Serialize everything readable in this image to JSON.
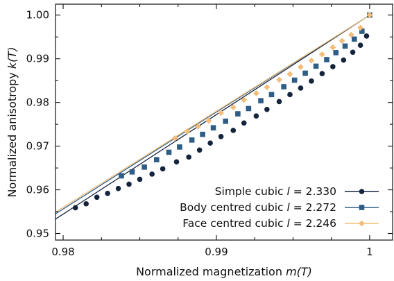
{
  "chart_data": {
    "type": "line",
    "xlabel": "Normalized magnetization ",
    "xlabel_italic": "m(T)",
    "ylabel": "Normalized anisotropy ",
    "ylabel_italic": "k(T)",
    "xlim": [
      0.9795,
      1.0015
    ],
    "ylim": [
      0.9485,
      1.0025
    ],
    "x_ticks": [
      0.98,
      0.99,
      1.0
    ],
    "x_tick_labels": [
      "0.98",
      "0.99",
      "1"
    ],
    "x_minor_ticks": [
      0.9825,
      0.985,
      0.9875,
      0.9925,
      0.995,
      0.9975
    ],
    "y_ticks": [
      0.95,
      0.96,
      0.97,
      0.98,
      0.99,
      1.0
    ],
    "y_tick_labels": [
      "0.95",
      "0.96",
      "0.97",
      "0.98",
      "0.99",
      "1.00"
    ],
    "y_minor_ticks": [
      0.955,
      0.965,
      0.975,
      0.985,
      0.995
    ],
    "grid": false,
    "legend_position": "bottom-right",
    "series": [
      {
        "name": "Simple cubic ",
        "l_symbol": "l",
        "l_value": " = 2.330",
        "color": "#15243d",
        "marker": "circle",
        "fit": [
          [
            0.9795,
            0.9533
          ],
          [
            1.0,
            1.0
          ]
        ],
        "points": [
          [
            0.9808,
            0.9559
          ],
          [
            0.9815,
            0.9568
          ],
          [
            0.9822,
            0.9583
          ],
          [
            0.9829,
            0.9592
          ],
          [
            0.9836,
            0.9603
          ],
          [
            0.9843,
            0.9613
          ],
          [
            0.985,
            0.9624
          ],
          [
            0.9858,
            0.9636
          ],
          [
            0.9865,
            0.9648
          ],
          [
            0.9874,
            0.9664
          ],
          [
            0.9882,
            0.9675
          ],
          [
            0.9889,
            0.9691
          ],
          [
            0.9896,
            0.9707
          ],
          [
            0.9903,
            0.9722
          ],
          [
            0.9911,
            0.9736
          ],
          [
            0.9918,
            0.9753
          ],
          [
            0.9926,
            0.9769
          ],
          [
            0.9933,
            0.9784
          ],
          [
            0.9941,
            0.9802
          ],
          [
            0.9948,
            0.9818
          ],
          [
            0.9955,
            0.9833
          ],
          [
            0.9962,
            0.9849
          ],
          [
            0.9969,
            0.9866
          ],
          [
            0.9976,
            0.9882
          ],
          [
            0.9983,
            0.9897
          ],
          [
            0.9989,
            0.9915
          ],
          [
            0.9994,
            0.9931
          ],
          [
            0.9998,
            0.9952
          ],
          [
            1.0,
            1.0
          ]
        ]
      },
      {
        "name": "Body centred cubic ",
        "l_symbol": "l",
        "l_value": " = 2.272",
        "color": "#2e5d86",
        "marker": "square",
        "fit": [
          [
            0.9795,
            0.9545
          ],
          [
            1.0,
            1.0
          ]
        ],
        "points": [
          [
            0.9838,
            0.9632
          ],
          [
            0.9845,
            0.9641
          ],
          [
            0.9853,
            0.9652
          ],
          [
            0.9861,
            0.9669
          ],
          [
            0.9869,
            0.9686
          ],
          [
            0.9876,
            0.9698
          ],
          [
            0.9884,
            0.9714
          ],
          [
            0.9891,
            0.9727
          ],
          [
            0.9898,
            0.9742
          ],
          [
            0.9906,
            0.9757
          ],
          [
            0.9914,
            0.9774
          ],
          [
            0.9921,
            0.9786
          ],
          [
            0.9929,
            0.9804
          ],
          [
            0.9936,
            0.9818
          ],
          [
            0.9944,
            0.9836
          ],
          [
            0.9951,
            0.9851
          ],
          [
            0.9958,
            0.9867
          ],
          [
            0.9965,
            0.9883
          ],
          [
            0.9972,
            0.9898
          ],
          [
            0.9978,
            0.9914
          ],
          [
            0.9984,
            0.9929
          ],
          [
            0.999,
            0.9945
          ],
          [
            0.9995,
            0.9963
          ],
          [
            1.0,
            1.0
          ]
        ]
      },
      {
        "name": "Face centred cubic ",
        "l_symbol": "l",
        "l_value": " = 2.246",
        "color": "#f2bd7a",
        "marker": "diamond",
        "fit": [
          [
            0.9795,
            0.9549
          ],
          [
            1.0,
            1.0
          ]
        ],
        "points": [
          [
            0.9873,
            0.9718
          ],
          [
            0.9881,
            0.9734
          ],
          [
            0.9888,
            0.9745
          ],
          [
            0.9895,
            0.9758
          ],
          [
            0.9903,
            0.9776
          ],
          [
            0.9911,
            0.9789
          ],
          [
            0.9918,
            0.9806
          ],
          [
            0.9926,
            0.9821
          ],
          [
            0.9933,
            0.9835
          ],
          [
            0.9941,
            0.9852
          ],
          [
            0.9948,
            0.9865
          ],
          [
            0.9955,
            0.9881
          ],
          [
            0.9962,
            0.9896
          ],
          [
            0.9969,
            0.991
          ],
          [
            0.9976,
            0.9926
          ],
          [
            0.9982,
            0.9941
          ],
          [
            0.9988,
            0.9955
          ],
          [
            0.9994,
            0.9971
          ],
          [
            1.0,
            1.0
          ]
        ]
      }
    ]
  }
}
